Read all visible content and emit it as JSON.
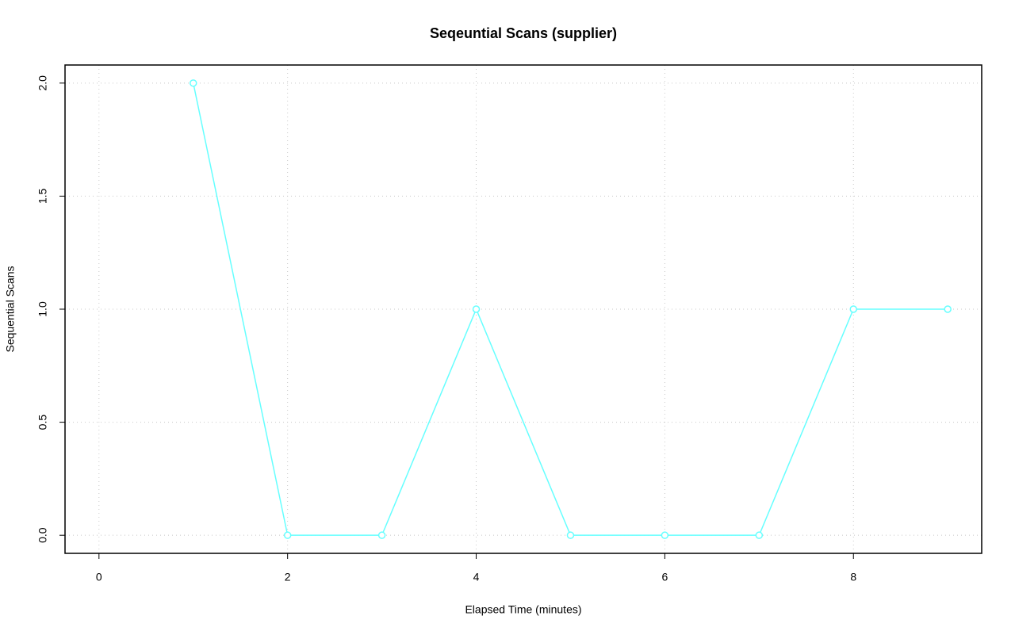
{
  "chart_data": {
    "type": "line",
    "title": "Seqeuntial Scans (supplier)",
    "x_label": "Elapsed Time (minutes)",
    "y_label": "Sequential Scans",
    "x": [
      1,
      2,
      3,
      4,
      5,
      6,
      7,
      8,
      9
    ],
    "series": [
      {
        "name": "Sequential Scans",
        "color": "#66ffff",
        "values": [
          2,
          0,
          0,
          1,
          0,
          0,
          0,
          1,
          1
        ]
      }
    ],
    "xlim": [
      -0.36,
      9.36
    ],
    "ylim": [
      -0.08,
      2.08
    ],
    "xticks": [
      0,
      2,
      4,
      6,
      8
    ],
    "yticks": [
      {
        "value": 0,
        "label": "0.0"
      },
      {
        "value": 0.5,
        "label": "0.5"
      },
      {
        "value": 1,
        "label": "1.0"
      },
      {
        "value": 1.5,
        "label": "1.5"
      },
      {
        "value": 2,
        "label": "2.0"
      }
    ],
    "grid": true
  }
}
